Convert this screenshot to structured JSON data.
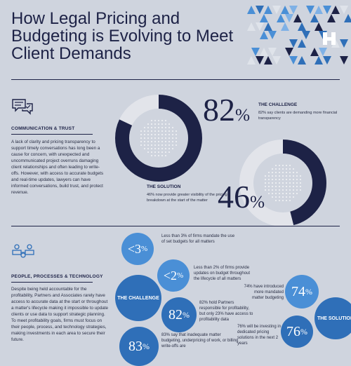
{
  "title": "How Legal Pricing and Budgeting is Evolving to Meet Client Demands",
  "colors": {
    "navy": "#1d2246",
    "blue": "#2f6fb8",
    "light_blue": "#4a8fd6",
    "gray_ring": "#e2e4ea",
    "background": "#cfd4de"
  },
  "section1": {
    "icon": "chat-bubbles-icon",
    "heading": "COMMUNICATION & TRUST",
    "body": "A lack of clarity and pricing transparency to support timely conversations has long been a cause for concern, with unexpected and uncommunicated project overruns damaging client relationships and often leading to write-offs. However, with access to accurate budgets and real-time updates, lawyers can have informed conversations, build trust, and protect revenue.",
    "challenge": {
      "value": "82",
      "unit": "%",
      "fill_fraction": 0.82,
      "label": "THE CHALLENGE",
      "text": "82% say clients are demanding more financial transparency"
    },
    "solution": {
      "value": "46",
      "unit": "%",
      "fill_fraction": 0.46,
      "label": "THE SOLUTION",
      "text": "46% now provide greater visibility of the pricing breakdown at the start of the matter"
    }
  },
  "section2": {
    "icon": "people-network-icon",
    "heading": "PEOPLE, PROCESSES & TECHNOLOGY",
    "body": "Despite being held accountable for the profitability, Partners and Associates rarely have access to accurate data at the start or throughout a matter's lifecycle making it impossible to update clients or use data to support strategic planning. To meet profitability goals, firms must focus on their people, process, and technology strategies, making investments in each area to secure their future.",
    "challenge_label": "THE CHALLENGE",
    "solution_label": "THE SOLUTION",
    "stats": [
      {
        "value": "<3",
        "unit": "%",
        "text": "Less than 3% of firms mandate the use of set budgets for all matters"
      },
      {
        "value": "<2",
        "unit": "%",
        "text": "Less than 2% of firms provide updates on budget throughout the lifecycle of all matters"
      },
      {
        "value": "82",
        "unit": "%",
        "text": "82% hold Partners responsible for profitability, but only 23% have access to profitability data"
      },
      {
        "value": "83",
        "unit": "%",
        "text": "83% say that inadequate matter budgeting, underpricing of work, or billing write-offs are"
      },
      {
        "value": "74",
        "unit": "%",
        "text": "74% have introduced more mandated matter budgeting"
      },
      {
        "value": "76",
        "unit": "%",
        "text": "76% will be investing in dedicated pricing solutions in the next 2 years"
      }
    ]
  }
}
